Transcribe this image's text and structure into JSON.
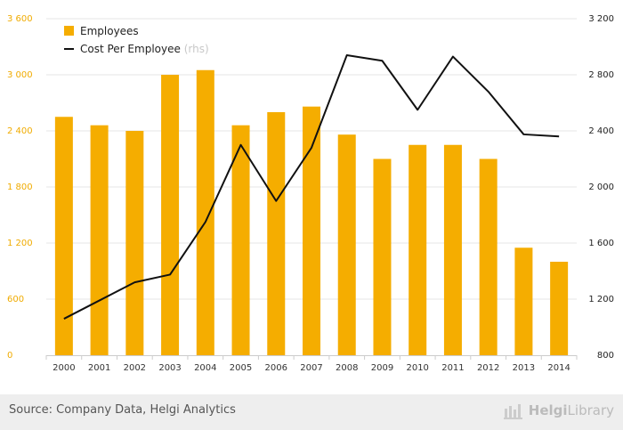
{
  "chart_data": {
    "type": "bar+line",
    "categories": [
      "2000",
      "2001",
      "2002",
      "2003",
      "2004",
      "2005",
      "2006",
      "2007",
      "2008",
      "2009",
      "2010",
      "2011",
      "2012",
      "2013",
      "2014"
    ],
    "series": [
      {
        "name": "Employees",
        "type": "bar",
        "axis": "left",
        "color": "#f5ad00",
        "values": [
          2550,
          2460,
          2400,
          3000,
          3050,
          2460,
          2600,
          2660,
          2360,
          2100,
          2250,
          2250,
          2100,
          1150,
          1000
        ]
      },
      {
        "name": "Cost Per Employee",
        "name_suffix": "(rhs)",
        "type": "line",
        "axis": "right",
        "color": "#111111",
        "values": [
          1060,
          1190,
          1320,
          1375,
          1750,
          2300,
          1900,
          2280,
          2940,
          2900,
          2550,
          2930,
          2680,
          2375,
          2360
        ]
      }
    ],
    "y_left": {
      "ylim": [
        0,
        3600
      ],
      "ticks": [
        0,
        600,
        1200,
        1800,
        2400,
        3000,
        3600
      ],
      "tick_labels": [
        "0",
        "600",
        "1 200",
        "1 800",
        "2 400",
        "3 000",
        "3 600"
      ]
    },
    "y_right": {
      "ylim": [
        800,
        3200
      ],
      "ticks": [
        800,
        1200,
        1600,
        2000,
        2400,
        2800,
        3200
      ],
      "tick_labels": [
        "800",
        "1 200",
        "1 600",
        "2 000",
        "2 400",
        "2 800",
        "3 200"
      ]
    },
    "grid": true,
    "legend_position": "top-left"
  },
  "footer": {
    "source": "Source: Company Data, Helgi Analytics",
    "brand_prefix": "Helgi",
    "brand_suffix": "Library"
  },
  "colors": {
    "bar": "#f5ad00",
    "line": "#111111",
    "left_ticks": "#f0ab00",
    "footer_bg": "#eeeeee"
  }
}
